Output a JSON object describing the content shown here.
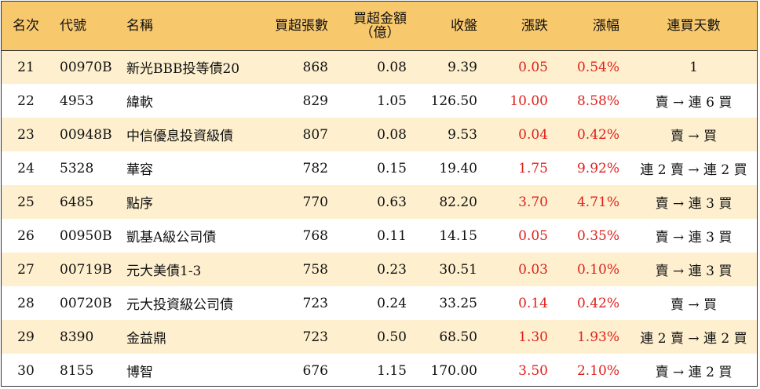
{
  "header": {
    "rank": "名次",
    "code": "代號",
    "name": "名稱",
    "net_buy_lots": "買超張數",
    "net_buy_amount_line1": "買超金額",
    "net_buy_amount_line2": "（億）",
    "close": "收盤",
    "change": "漲跌",
    "change_pct": "漲幅",
    "consecutive_days": "連買天數"
  },
  "rows": [
    {
      "rank": "21",
      "code": "00970B",
      "name": "新光BBB投等債20",
      "lots": "868",
      "amount": "0.08",
      "close": "9.39",
      "change": "0.05",
      "pct": "0.54%",
      "days": "1"
    },
    {
      "rank": "22",
      "code": "4953",
      "name": "緯軟",
      "lots": "829",
      "amount": "1.05",
      "close": "126.50",
      "change": "10.00",
      "pct": "8.58%",
      "days": "賣 → 連 6 買"
    },
    {
      "rank": "23",
      "code": "00948B",
      "name": "中信優息投資級債",
      "lots": "807",
      "amount": "0.08",
      "close": "9.53",
      "change": "0.04",
      "pct": "0.42%",
      "days": "賣 → 買"
    },
    {
      "rank": "24",
      "code": "5328",
      "name": "華容",
      "lots": "782",
      "amount": "0.15",
      "close": "19.40",
      "change": "1.75",
      "pct": "9.92%",
      "days": "連 2 賣 → 連 2 買"
    },
    {
      "rank": "25",
      "code": "6485",
      "name": "點序",
      "lots": "770",
      "amount": "0.63",
      "close": "82.20",
      "change": "3.70",
      "pct": "4.71%",
      "days": "賣 → 連 3 買"
    },
    {
      "rank": "26",
      "code": "00950B",
      "name": "凱基A級公司債",
      "lots": "768",
      "amount": "0.11",
      "close": "14.15",
      "change": "0.05",
      "pct": "0.35%",
      "days": "賣 → 連 3 買"
    },
    {
      "rank": "27",
      "code": "00719B",
      "name": "元大美債1-3",
      "lots": "758",
      "amount": "0.23",
      "close": "30.51",
      "change": "0.03",
      "pct": "0.10%",
      "days": "賣 → 連 3 買"
    },
    {
      "rank": "28",
      "code": "00720B",
      "name": "元大投資級公司債",
      "lots": "723",
      "amount": "0.24",
      "close": "33.25",
      "change": "0.14",
      "pct": "0.42%",
      "days": "賣 → 買"
    },
    {
      "rank": "29",
      "code": "8390",
      "name": "金益鼎",
      "lots": "723",
      "amount": "0.50",
      "close": "68.50",
      "change": "1.30",
      "pct": "1.93%",
      "days": "連 2 賣 → 連 2 買"
    },
    {
      "rank": "30",
      "code": "8155",
      "name": "博智",
      "lots": "676",
      "amount": "1.15",
      "close": "170.00",
      "change": "3.50",
      "pct": "2.10%",
      "days": "賣 → 連 2 買"
    }
  ],
  "colors": {
    "header_bg": "#f8c86d",
    "odd_row_bg": "#fef0cf",
    "even_row_bg": "#ffffff",
    "up_red": "#e0201b"
  }
}
